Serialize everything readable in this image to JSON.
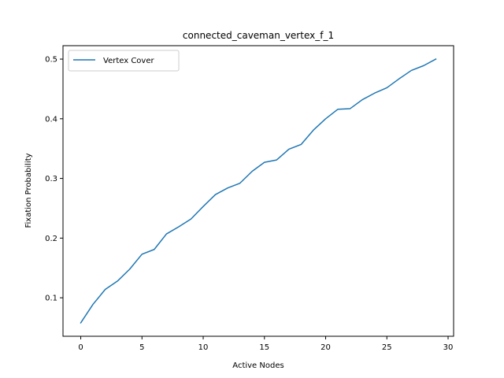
{
  "chart_data": {
    "type": "line",
    "title": "connected_caveman_vertex_f_1",
    "xlabel": "Active Nodes",
    "ylabel": "Fixation Probability",
    "xlim": [
      -1.45,
      30.45
    ],
    "ylim": [
      0.0355,
      0.5225
    ],
    "xticks": [
      0,
      5,
      10,
      15,
      20,
      25,
      30
    ],
    "yticks": [
      0.1,
      0.2,
      0.3,
      0.4,
      0.5
    ],
    "xtick_labels": [
      "0",
      "5",
      "10",
      "15",
      "20",
      "25",
      "30"
    ],
    "ytick_labels": [
      "0.1",
      "0.2",
      "0.3",
      "0.4",
      "0.5"
    ],
    "grid": false,
    "legend_position": "upper-left",
    "series": [
      {
        "name": "Vertex Cover",
        "color": "#1f77b4",
        "x": [
          0,
          1,
          2,
          3,
          4,
          5,
          6,
          7,
          8,
          9,
          10,
          11,
          12,
          13,
          14,
          15,
          16,
          17,
          18,
          19,
          20,
          21,
          22,
          23,
          24,
          25,
          26,
          27,
          28,
          29
        ],
        "y": [
          0.058,
          0.089,
          0.114,
          0.128,
          0.148,
          0.173,
          0.181,
          0.207,
          0.219,
          0.232,
          0.253,
          0.273,
          0.284,
          0.292,
          0.312,
          0.327,
          0.331,
          0.349,
          0.357,
          0.381,
          0.4,
          0.416,
          0.417,
          0.432,
          0.443,
          0.452,
          0.467,
          0.481,
          0.489,
          0.5
        ]
      }
    ]
  }
}
